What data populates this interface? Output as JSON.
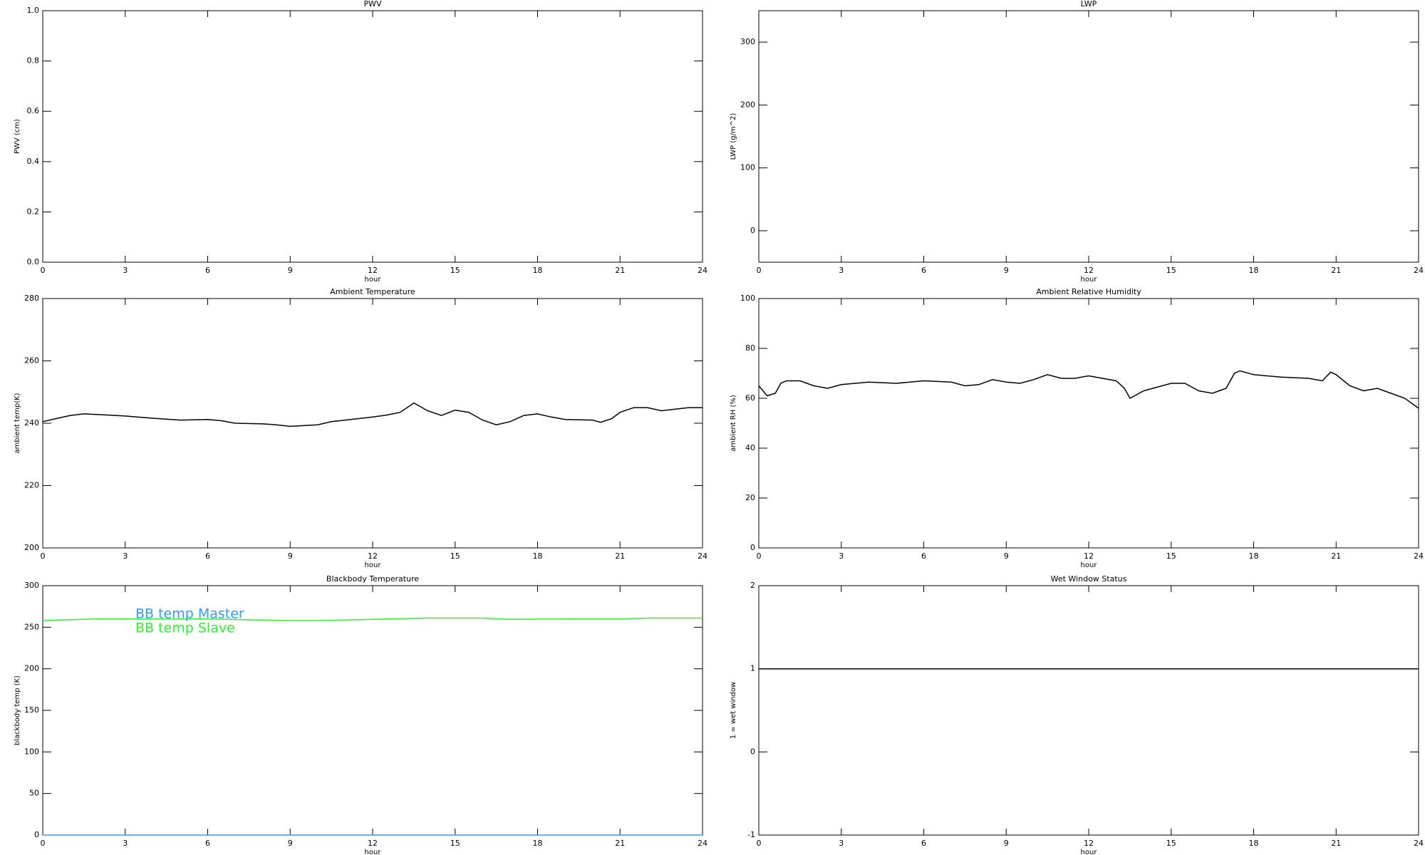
{
  "chart_data": [
    {
      "type": "line",
      "title": "PWV",
      "xlabel": "hour",
      "ylabel": "PWV (cm)",
      "xlim": [
        0,
        24
      ],
      "xticks": [
        0,
        3,
        6,
        9,
        12,
        15,
        18,
        21,
        24
      ],
      "ylim": [
        0,
        1
      ],
      "yticks": [
        {
          "value": 0,
          "label": "0.0"
        },
        {
          "value": 0.2,
          "label": "0.2"
        },
        {
          "value": 0.4,
          "label": "0.4"
        },
        {
          "value": 0.6,
          "label": "0.6"
        },
        {
          "value": 0.8,
          "label": "0.8"
        },
        {
          "value": 1,
          "label": "1.0"
        }
      ],
      "x": [],
      "series": []
    },
    {
      "type": "line",
      "title": "LWP",
      "xlabel": "hour",
      "ylabel": "LWP (g/m^2)",
      "xlim": [
        0,
        24
      ],
      "xticks": [
        0,
        3,
        6,
        9,
        12,
        15,
        18,
        21,
        24
      ],
      "ylim": [
        -50,
        350
      ],
      "yticks": [
        0,
        100,
        200,
        300
      ],
      "x": [],
      "series": []
    },
    {
      "type": "line",
      "title": "Ambient Temperature",
      "xlabel": "hour",
      "ylabel": "ambient temp(K)",
      "xlim": [
        0,
        24
      ],
      "xticks": [
        0,
        3,
        6,
        9,
        12,
        15,
        18,
        21,
        24
      ],
      "ylim": [
        200,
        280
      ],
      "yticks": [
        200,
        220,
        240,
        260,
        280
      ],
      "x": [
        0,
        0.5,
        1,
        1.5,
        2,
        3,
        4,
        5,
        6,
        6.5,
        7,
        8,
        8.5,
        9,
        10,
        10.5,
        11,
        12,
        12.5,
        13,
        13.5,
        14,
        14.5,
        15,
        15.5,
        16,
        16.5,
        17,
        17.5,
        18,
        18.5,
        19,
        20,
        20.3,
        20.7,
        21,
        21.5,
        22,
        22.5,
        23,
        23.5,
        24
      ],
      "series": [
        {
          "color": "#000000",
          "values": [
            240.5,
            241.5,
            242.5,
            243,
            242.8,
            242.3,
            241.6,
            241,
            241.2,
            240.8,
            240,
            239.8,
            239.5,
            239,
            239.5,
            240.5,
            241,
            242,
            242.6,
            243.5,
            246.5,
            244,
            242.5,
            244.2,
            243.5,
            241,
            239.5,
            240.5,
            242.5,
            243,
            242,
            241.2,
            241,
            240.3,
            241.5,
            243.5,
            245,
            245,
            244,
            244.5,
            245,
            245
          ]
        }
      ]
    },
    {
      "type": "line",
      "title": "Ambient Relative Humidity",
      "xlabel": "hour",
      "ylabel": "ambient RH (%)",
      "xlim": [
        0,
        24
      ],
      "xticks": [
        0,
        3,
        6,
        9,
        12,
        15,
        18,
        21,
        24
      ],
      "ylim": [
        0,
        100
      ],
      "yticks": [
        0,
        20,
        40,
        60,
        80,
        100
      ],
      "x": [
        0,
        0.3,
        0.6,
        0.8,
        1,
        1.5,
        2,
        2.5,
        3,
        4,
        5,
        6,
        7,
        7.5,
        8,
        8.5,
        9,
        9.5,
        10,
        10.5,
        11,
        11.5,
        12,
        12.5,
        13,
        13.3,
        13.5,
        14,
        15,
        15.5,
        16,
        16.5,
        17,
        17.3,
        17.5,
        18,
        19,
        20,
        20.5,
        20.8,
        21,
        21.5,
        22,
        22.5,
        23,
        23.5,
        24
      ],
      "series": [
        {
          "color": "#000000",
          "values": [
            65,
            61,
            62,
            66,
            67,
            67,
            65,
            64,
            65.5,
            66.5,
            66,
            67,
            66.5,
            65,
            65.5,
            67.5,
            66.5,
            66,
            67.5,
            69.5,
            68,
            68,
            69,
            68,
            67,
            64,
            60,
            63,
            66,
            66,
            63,
            62,
            64,
            70,
            71,
            69.5,
            68.5,
            68,
            67,
            70.5,
            69.5,
            65,
            63,
            64,
            62,
            60,
            56
          ]
        }
      ]
    },
    {
      "type": "line",
      "title": "Blackbody Temperature",
      "xlabel": "hour",
      "ylabel": "blackbody temp (K)",
      "xlim": [
        0,
        24
      ],
      "xticks": [
        0,
        3,
        6,
        9,
        12,
        15,
        18,
        21,
        24
      ],
      "ylim": [
        0,
        300
      ],
      "yticks": [
        0,
        50,
        100,
        150,
        200,
        250,
        300
      ],
      "legend": "upper left",
      "x": [
        0,
        1,
        2,
        3,
        6,
        9,
        10,
        12,
        14,
        16,
        17,
        19,
        21,
        22,
        24
      ],
      "series": [
        {
          "name": "BB temp Master",
          "color": "#3399ff",
          "values": [
            0,
            0,
            0,
            0,
            0,
            0,
            0,
            0,
            0,
            0,
            0,
            0,
            0,
            0,
            0
          ]
        },
        {
          "name": "BB temp Slave",
          "color": "#33ee33",
          "values": [
            258,
            259,
            260,
            260,
            260,
            258,
            258,
            259.5,
            261,
            261,
            259.5,
            260,
            260,
            261,
            261
          ]
        }
      ]
    },
    {
      "type": "line",
      "title": "Wet Window Status",
      "xlabel": "hour",
      "ylabel": "1 = wet window",
      "xlim": [
        0,
        24
      ],
      "xticks": [
        0,
        3,
        6,
        9,
        12,
        15,
        18,
        21,
        24
      ],
      "ylim": [
        -1,
        2
      ],
      "yticks": [
        -1,
        0,
        1,
        2
      ],
      "x": [
        0,
        24
      ],
      "series": [
        {
          "color": "#000000",
          "values": [
            1,
            1
          ]
        }
      ]
    }
  ]
}
